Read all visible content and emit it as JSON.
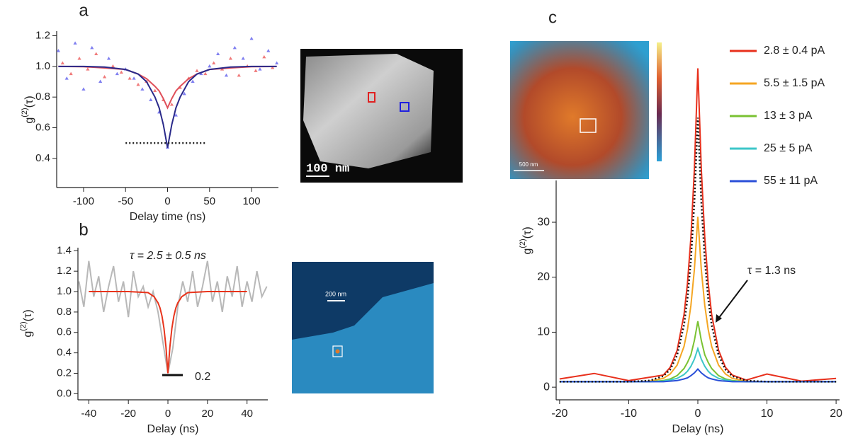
{
  "chart_data": [
    {
      "type": "scatter",
      "panel": "a",
      "xlabel": "Delay time (ns)",
      "ylabel": [
        "g",
        "(2)",
        "(τ)"
      ],
      "xlim": [
        -132,
        132
      ],
      "ylim": [
        0.21,
        1.23
      ],
      "xticks": [
        -100,
        -50,
        0,
        50,
        100
      ],
      "yticks": [
        0.4,
        0.6,
        0.8,
        {
          "value": 1.0,
          "label": "1.0"
        },
        1.2
      ],
      "series": [
        {
          "type": "scatter",
          "color": "#f07a7a",
          "x": [
            -125,
            -115,
            -105,
            -95,
            -85,
            -75,
            -65,
            -55,
            -45,
            -35,
            -25,
            -15,
            -5,
            5,
            15,
            25,
            35,
            45,
            55,
            65,
            75,
            85,
            95,
            105,
            115,
            125
          ],
          "values": [
            1.02,
            0.95,
            1.05,
            0.98,
            1.08,
            0.93,
            1.0,
            0.96,
            0.92,
            0.88,
            0.9,
            0.84,
            0.78,
            0.75,
            0.86,
            0.92,
            0.97,
            0.95,
            1.02,
            0.98,
            1.05,
            0.94,
            1.0,
            0.97,
            1.06,
            0.99
          ]
        },
        {
          "type": "scatter",
          "color": "#7f7ff0",
          "x": [
            -130,
            -120,
            -110,
            -100,
            -90,
            -80,
            -70,
            -60,
            -50,
            -40,
            -30,
            -20,
            -10,
            0,
            10,
            20,
            30,
            40,
            50,
            60,
            70,
            80,
            90,
            100,
            110,
            120,
            130
          ],
          "values": [
            1.1,
            0.92,
            1.15,
            0.85,
            1.12,
            0.9,
            1.05,
            0.95,
            0.98,
            0.92,
            0.85,
            0.78,
            0.7,
            0.47,
            0.68,
            0.82,
            0.9,
            0.95,
            1.0,
            1.08,
            0.94,
            1.12,
            1.05,
            1.18,
            0.98,
            1.1,
            1.02
          ]
        },
        {
          "type": "line",
          "color": "#e0505a",
          "x": [
            -130,
            -100,
            -75,
            -50,
            -35,
            -25,
            -15,
            -10,
            -5,
            0,
            5,
            10,
            15,
            25,
            35,
            50,
            75,
            100,
            130
          ],
          "values": [
            1.0,
            0.998,
            0.99,
            0.98,
            0.95,
            0.92,
            0.87,
            0.84,
            0.79,
            0.73,
            0.79,
            0.84,
            0.87,
            0.92,
            0.95,
            0.98,
            0.99,
            0.998,
            1.0
          ]
        },
        {
          "type": "line",
          "color": "#2a2a8a",
          "x": [
            -130,
            -100,
            -75,
            -50,
            -35,
            -25,
            -15,
            -10,
            -5,
            0,
            5,
            10,
            15,
            25,
            35,
            50,
            75,
            100,
            130
          ],
          "values": [
            1.0,
            1.0,
            0.996,
            0.98,
            0.95,
            0.9,
            0.8,
            0.73,
            0.62,
            0.47,
            0.62,
            0.73,
            0.8,
            0.9,
            0.95,
            0.98,
            0.996,
            1.0,
            1.0
          ]
        },
        {
          "type": "line",
          "color": "#222222",
          "style": "dotted",
          "x": [
            -50,
            45
          ],
          "values": [
            0.5,
            0.5
          ]
        }
      ]
    },
    {
      "type": "line",
      "panel": "b",
      "xlabel": "Delay (ns)",
      "ylabel": [
        "g",
        "(2)",
        "(τ)"
      ],
      "xlim": [
        -45.5,
        50.5
      ],
      "ylim": [
        -0.06,
        1.43
      ],
      "xticks": [
        -40,
        -20,
        0,
        20,
        40
      ],
      "yticks": [
        {
          "value": 0.0,
          "label": "0.0"
        },
        0.2,
        0.4,
        0.6,
        0.8,
        {
          "value": 1.0,
          "label": "1.0"
        },
        1.2,
        1.4
      ],
      "annotations": [
        "τ = 2.5 ± 0.5 ns",
        "0.2"
      ],
      "series": [
        {
          "type": "line",
          "color": "#b8b8b8",
          "x": [
            -45,
            -42.5,
            -40,
            -37.5,
            -35,
            -32.5,
            -30,
            -27.5,
            -25,
            -22.5,
            -20,
            -17.5,
            -15,
            -12.5,
            -10,
            -7.5,
            -5,
            -2.5,
            0,
            2.5,
            5,
            7.5,
            10,
            12.5,
            15,
            17.5,
            20,
            22.5,
            25,
            27.5,
            30,
            32.5,
            35,
            37.5,
            40,
            42.5,
            45,
            47.5,
            50
          ],
          "values": [
            1.1,
            0.85,
            1.3,
            0.95,
            1.15,
            0.8,
            1.05,
            1.25,
            0.9,
            1.1,
            0.75,
            1.2,
            0.95,
            1.05,
            0.85,
            1.0,
            0.8,
            0.5,
            0.2,
            0.45,
            0.85,
            1.1,
            0.9,
            1.2,
            0.85,
            1.05,
            1.3,
            0.9,
            1.1,
            0.8,
            1.15,
            0.95,
            1.25,
            0.85,
            1.1,
            0.9,
            1.2,
            0.95,
            1.05
          ]
        },
        {
          "type": "line",
          "color": "#e8341c",
          "x": [
            -40,
            -20,
            -10,
            -7,
            -5,
            -4,
            -3,
            -2,
            -1,
            0,
            1,
            2,
            3,
            4,
            5,
            7,
            10,
            20,
            40
          ],
          "values": [
            1.0,
            1.0,
            0.99,
            0.95,
            0.89,
            0.84,
            0.76,
            0.64,
            0.46,
            0.2,
            0.46,
            0.64,
            0.76,
            0.84,
            0.89,
            0.95,
            0.99,
            1.0,
            1.0
          ]
        }
      ]
    },
    {
      "type": "line",
      "panel": "c",
      "xlabel": "Delay (ns)",
      "ylabel": [
        "g",
        "(2)",
        "(τ)"
      ],
      "xlim": [
        -20.5,
        20.5
      ],
      "ylim": [
        -2.3,
        37.6
      ],
      "xticks": [
        -20,
        -10,
        0,
        10,
        20
      ],
      "yticks": [
        0,
        10,
        20,
        30
      ],
      "annotations": [
        "τ = 1.3 ns"
      ],
      "x": [
        -20,
        -15,
        -10,
        -7,
        -5,
        -4,
        -3,
        -2,
        -1.5,
        -1,
        -0.5,
        0,
        0.5,
        1,
        1.5,
        2,
        3,
        4,
        5,
        7,
        10,
        15,
        20
      ],
      "series": [
        {
          "name": "2.8 ± 0.4 pA",
          "color": "#e8301c",
          "values": [
            1.5,
            2.5,
            1.2,
            1.8,
            2.2,
            3.6,
            6.7,
            13.2,
            18.9,
            27.3,
            39.7,
            58,
            39.7,
            27.3,
            18.9,
            13.2,
            6.7,
            3.6,
            2.2,
            1.3,
            2.4,
            1.1,
            1.6
          ]
        },
        {
          "name": "5.5 ± 1.5 pA",
          "color": "#f5a623",
          "values": [
            1.0,
            1.0,
            1.0,
            1.1,
            1.6,
            2.4,
            4.0,
            7.4,
            10.5,
            14.9,
            21.4,
            31,
            21.4,
            14.9,
            10.5,
            7.4,
            4.0,
            2.4,
            1.6,
            1.1,
            1.0,
            1.0,
            1.0
          ]
        },
        {
          "name": "13 ± 3 pA",
          "color": "#7ac232",
          "values": [
            1.0,
            1.0,
            1.0,
            1.0,
            1.2,
            1.5,
            2.1,
            3.4,
            4.5,
            5.9,
            8.5,
            12,
            8.5,
            5.9,
            4.5,
            3.4,
            2.1,
            1.5,
            1.2,
            1.0,
            1.0,
            1.0,
            1.0
          ]
        },
        {
          "name": "25 ± 5 pA",
          "color": "#3cc6c8",
          "values": [
            1.0,
            1.0,
            1.0,
            1.0,
            1.1,
            1.3,
            1.6,
            2.3,
            2.9,
            3.8,
            5.1,
            7,
            5.1,
            3.8,
            2.9,
            2.3,
            1.6,
            1.3,
            1.1,
            1.0,
            1.0,
            1.0,
            1.0
          ]
        },
        {
          "name": "55 ± 11 pA",
          "color": "#2a4fd8",
          "values": [
            1.0,
            1.0,
            1.0,
            1.0,
            1.0,
            1.1,
            1.2,
            1.5,
            1.7,
            2.1,
            2.6,
            3.3,
            2.6,
            2.1,
            1.7,
            1.5,
            1.2,
            1.1,
            1.0,
            1.0,
            1.0,
            1.0,
            1.0
          ]
        },
        {
          "color": "#111111",
          "style": "dotted",
          "values": [
            1.0,
            1.0,
            1.0,
            1.2,
            2.0,
            3.2,
            5.8,
            11.3,
            16.1,
            23.2,
            33.7,
            49,
            33.7,
            23.2,
            16.1,
            11.3,
            5.8,
            3.2,
            2.0,
            1.2,
            1.0,
            1.0,
            1.0
          ]
        }
      ]
    }
  ],
  "images": [
    {
      "scale_label": "100 nm"
    },
    {
      "scale_label": "200 nm"
    },
    {
      "scale_label": "500 nm"
    }
  ]
}
